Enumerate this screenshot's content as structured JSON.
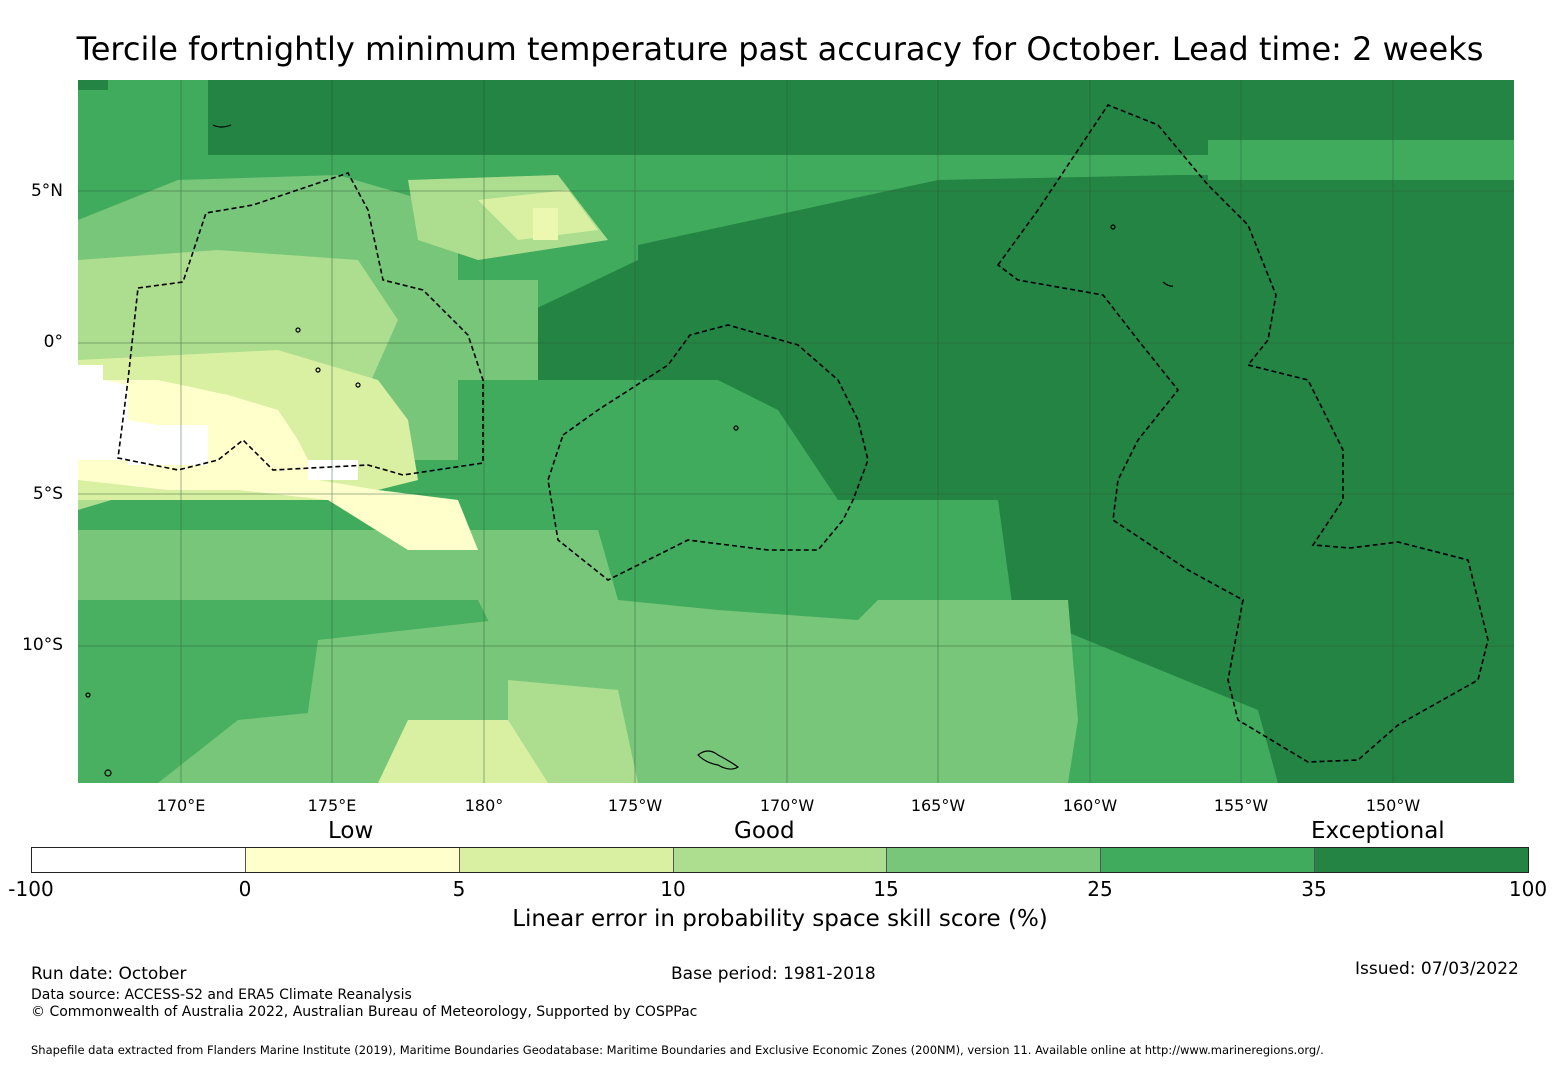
{
  "title": "Tercile fortnightly minimum temperature past accuracy for October. Lead time: 2 weeks",
  "map": {
    "lat_labels": [
      "5°N",
      "0°",
      "5°S",
      "10°S"
    ],
    "lon_labels": [
      "170°E",
      "175°E",
      "180°",
      "175°W",
      "170°W",
      "165°W",
      "160°W",
      "155°W",
      "150°W"
    ],
    "regions": [
      {
        "name": "region-left-eez",
        "category": "low-to-fair"
      },
      {
        "name": "region-center-eez",
        "category": "exceptional"
      },
      {
        "name": "region-right-eez",
        "category": "exceptional"
      }
    ]
  },
  "legend": {
    "categories": [
      "Low",
      "Good",
      "Exceptional"
    ],
    "ticks": [
      "-100",
      "0",
      "5",
      "10",
      "15",
      "25",
      "35",
      "100"
    ],
    "colors": [
      "#ffffff",
      "#ffffcc",
      "#d9f0a3",
      "#addd8e",
      "#78c679",
      "#41ab5d",
      "#238443"
    ],
    "axis_label": "Linear error in probability space skill score (%)"
  },
  "footer": {
    "run_date": "Run date: October",
    "base_period": "Base period: 1981-2018",
    "issued": "Issued: 07/03/2022",
    "data_source": "Data source: ACCESS-S2 and ERA5 Climate Reanalysis",
    "copyright": "© Commonwealth of Australia 2022, Australian Bureau of Meteorology, Supported by COSPPac",
    "shapefile": "Shapefile data extracted from Flanders Marine Institute (2019), Maritime Boundaries Geodatabase: Maritime Boundaries and Exclusive Economic Zones (200NM), version 11. Available online at http://www.marineregions.org/."
  }
}
